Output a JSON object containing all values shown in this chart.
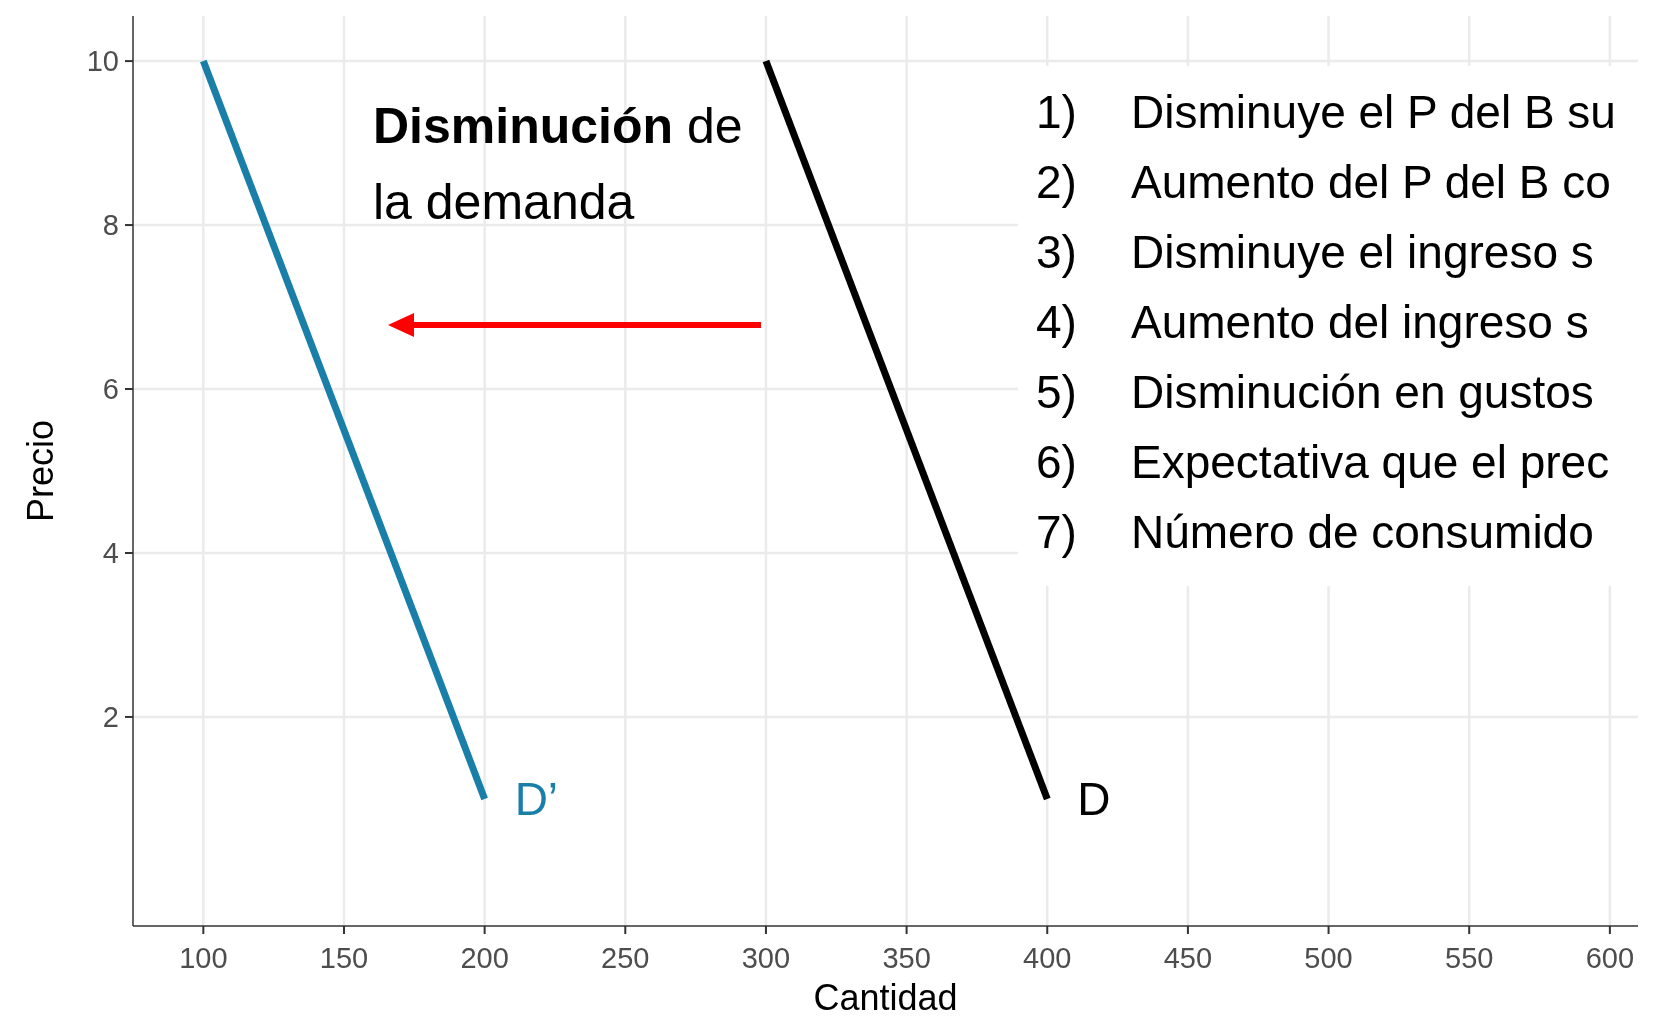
{
  "chart_data": {
    "type": "line",
    "xlabel": "Cantidad",
    "ylabel": "Precio",
    "series": [
      {
        "name": "D’",
        "color": "#1a7fa8",
        "x": [
          100,
          200
        ],
        "values": [
          10,
          1
        ]
      },
      {
        "name": "D",
        "color": "#000000",
        "x": [
          300,
          400
        ],
        "values": [
          10,
          1
        ]
      }
    ],
    "xlim": [
      75,
      610
    ],
    "xticks": [
      100,
      150,
      200,
      250,
      300,
      350,
      400,
      450,
      500,
      550,
      600
    ],
    "ylim": [
      -0.55,
      10.55
    ],
    "yticks": [
      2,
      4,
      6,
      8,
      10
    ],
    "grid": true,
    "marker": "none",
    "line_style": "solid",
    "annotations": [
      "Disminución de la demanda",
      "1) Disminuye el P del B su",
      "2) Aumento del P del B co",
      "3) Disminuye el ingreso s",
      "4) Aumento del ingreso s",
      "5) Disminución en gustos",
      "6) Expectativa que el prec",
      "7) Número de consumido"
    ]
  }
}
